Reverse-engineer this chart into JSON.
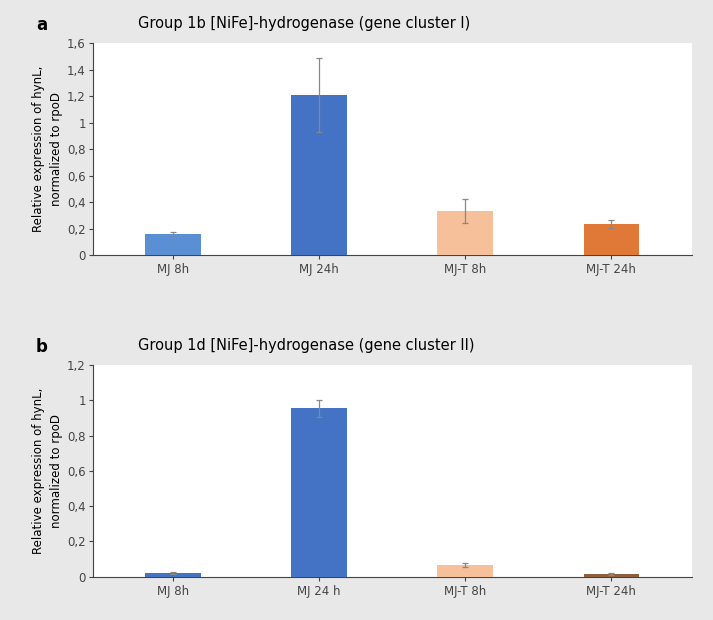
{
  "panel_a": {
    "title": "Group 1b [NiFe]-hydrogenase (gene cluster I)",
    "label": "a",
    "categories": [
      "MJ 8h",
      "MJ 24h",
      "MJ-T 8h",
      "MJ-T 24h"
    ],
    "values": [
      0.155,
      1.21,
      0.33,
      0.235
    ],
    "errors": [
      0.022,
      0.28,
      0.09,
      0.028
    ],
    "colors": [
      "#5B8FD4",
      "#4472C4",
      "#F5C09A",
      "#E07838"
    ],
    "ylim": [
      0,
      1.6
    ],
    "yticks": [
      0,
      0.2,
      0.4,
      0.6,
      0.8,
      1.0,
      1.2,
      1.4,
      1.6
    ],
    "yticklabels": [
      "0",
      "0,2",
      "0,4",
      "0,6",
      "0,8",
      "1",
      "1,2",
      "1,4",
      "1,6"
    ]
  },
  "panel_b": {
    "title": "Group 1d [NiFe]-hydrogenase (gene cluster II)",
    "label": "b",
    "categories": [
      "MJ 8h",
      "MJ 24 h",
      "MJ-T 8h",
      "MJ-T 24h"
    ],
    "values": [
      0.018,
      0.955,
      0.065,
      0.015
    ],
    "errors": [
      0.006,
      0.048,
      0.013,
      0.004
    ],
    "colors": [
      "#4472C4",
      "#4472C4",
      "#F5C09A",
      "#8B6040"
    ],
    "ylim": [
      0,
      1.2
    ],
    "yticks": [
      0,
      0.2,
      0.4,
      0.6,
      0.8,
      1.0,
      1.2
    ],
    "yticklabels": [
      "0",
      "0,2",
      "0,4",
      "0,6",
      "0,8",
      "1",
      "1,2"
    ]
  },
  "ylabel": "Relative expression of hynL,\nnormalized to rpoD",
  "background_color": "#E8E8E8",
  "plot_background": "#FFFFFF",
  "bar_width": 0.38,
  "title_fontsize": 10.5,
  "label_fontsize": 12,
  "tick_fontsize": 8.5,
  "ylabel_fontsize": 8.5
}
